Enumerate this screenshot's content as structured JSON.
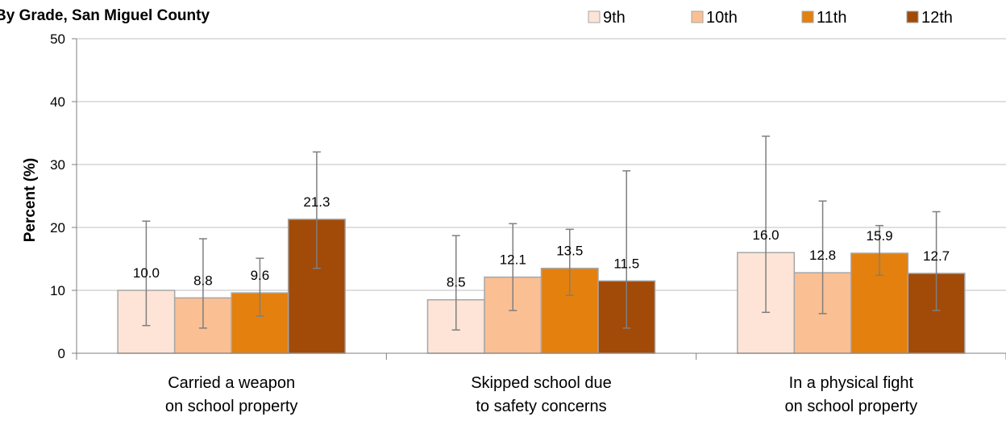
{
  "chart_data": {
    "type": "bar",
    "title": "By Grade, San Miguel County",
    "ylabel": "Percent (%)",
    "ylim": [
      0,
      50
    ],
    "yticks": [
      0,
      10,
      20,
      30,
      40,
      50
    ],
    "grid": true,
    "legend_position": "top-right",
    "categories": [
      [
        "Carried a weapon",
        "on school property"
      ],
      [
        "Skipped school due",
        "to safety concerns"
      ],
      [
        "In a physical fight",
        "on school property"
      ]
    ],
    "series": [
      {
        "name": "9th",
        "color": "#FDE4D6",
        "values": [
          10.0,
          8.5,
          16.0
        ],
        "labels": [
          "10.0",
          "8.5",
          "16.0"
        ],
        "error_low": [
          4.4,
          3.7,
          6.5
        ],
        "error_high": [
          21.0,
          18.7,
          34.5
        ]
      },
      {
        "name": "10th",
        "color": "#FBBF94",
        "values": [
          8.8,
          12.1,
          12.8
        ],
        "labels": [
          "8.8",
          "12.1",
          "12.8"
        ],
        "error_low": [
          4.0,
          6.8,
          6.3
        ],
        "error_high": [
          18.2,
          20.6,
          24.2
        ]
      },
      {
        "name": "11th",
        "color": "#E4800D",
        "values": [
          9.6,
          13.5,
          15.9
        ],
        "labels": [
          "9.6",
          "13.5",
          "15.9"
        ],
        "error_low": [
          5.9,
          9.2,
          12.4
        ],
        "error_high": [
          15.1,
          19.7,
          20.3
        ]
      },
      {
        "name": "12th",
        "color": "#A24A07",
        "values": [
          21.3,
          11.5,
          12.7
        ],
        "labels": [
          "21.3",
          "11.5",
          "12.7"
        ],
        "error_low": [
          13.5,
          4.0,
          6.8
        ],
        "error_high": [
          32.0,
          29.0,
          22.5
        ]
      }
    ]
  }
}
